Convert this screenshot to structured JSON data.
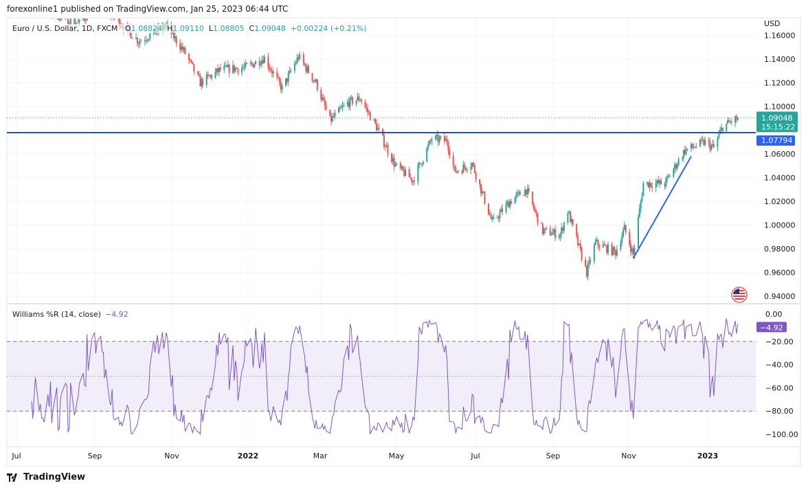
{
  "header": {
    "published": "forexonline1 published on TradingView.com, Jan 25, 2023 06:44 UTC"
  },
  "legend": {
    "symbol": "Euro / U.S. Dollar, 1D, FXCM",
    "o_label": "O",
    "o": "1.08824",
    "h_label": "H",
    "h": "1.09110",
    "l_label": "L",
    "l": "1.08805",
    "c_label": "C",
    "c": "1.09048",
    "change": "+0.00224 (+0.21%)"
  },
  "indicator_legend": {
    "name": "Williams %R (14, close)",
    "value": "−4.92"
  },
  "price_axis": {
    "currency": "USD",
    "ticks": [
      "1.16000",
      "1.14000",
      "1.12000",
      "1.10000",
      "1.06000",
      "1.04000",
      "1.02000",
      "1.00000",
      "0.98000",
      "0.96000",
      "0.94000"
    ],
    "last_price_label": "1.09048",
    "countdown": "15:15:22",
    "line_label": "1.07794"
  },
  "indicator_axis": {
    "ticks": [
      "0.00",
      "−20.00",
      "−40.00",
      "−60.00",
      "−80.00",
      "−100.00"
    ],
    "value_label": "−4.92"
  },
  "time_axis": {
    "labels": [
      "Jul",
      "Sep",
      "Nov",
      "2022",
      "Mar",
      "May",
      "Jul",
      "Sep",
      "Nov",
      "2023"
    ]
  },
  "footer": {
    "logo_text": "TradingView"
  },
  "colors": {
    "up": "#26a69a",
    "down": "#ef5350",
    "line": "#2962ff",
    "horizontal_line": "#1e53a5",
    "williams": "#7e57c2",
    "band": "#ede7f6"
  },
  "icons": {
    "flag": "us-flag-icon",
    "logo": "tradingview-logo"
  },
  "chart_data": [
    {
      "type": "candlestick",
      "title": "Euro / U.S. Dollar, 1D, FXCM",
      "ylabel": "USD",
      "ylim": [
        0.935,
        1.172
      ],
      "xlim": [
        "2021-06-23",
        "2023-02-08"
      ],
      "grid": true,
      "approx_closes": [
        [
          "2021-06-24",
          1.193
        ],
        [
          "2021-08-05",
          1.176
        ],
        [
          "2021-08-20",
          1.17
        ],
        [
          "2021-09-03",
          1.187
        ],
        [
          "2021-09-22",
          1.17
        ],
        [
          "2021-10-06",
          1.155
        ],
        [
          "2021-10-28",
          1.168
        ],
        [
          "2021-11-12",
          1.145
        ],
        [
          "2021-11-24",
          1.12
        ],
        [
          "2021-12-10",
          1.131
        ],
        [
          "2021-12-30",
          1.133
        ],
        [
          "2022-01-14",
          1.141
        ],
        [
          "2022-01-28",
          1.115
        ],
        [
          "2022-02-10",
          1.142
        ],
        [
          "2022-02-24",
          1.12
        ],
        [
          "2022-03-07",
          1.088
        ],
        [
          "2022-03-21",
          1.103
        ],
        [
          "2022-03-31",
          1.107
        ],
        [
          "2022-04-14",
          1.081
        ],
        [
          "2022-04-28",
          1.05
        ],
        [
          "2022-05-12",
          1.038
        ],
        [
          "2022-05-27",
          1.073
        ],
        [
          "2022-06-08",
          1.071
        ],
        [
          "2022-06-14",
          1.045
        ],
        [
          "2022-06-28",
          1.052
        ],
        [
          "2022-07-14",
          1.002
        ],
        [
          "2022-07-28",
          1.02
        ],
        [
          "2022-08-10",
          1.03
        ],
        [
          "2022-08-23",
          0.995
        ],
        [
          "2022-09-06",
          0.992
        ],
        [
          "2022-09-12",
          1.012
        ],
        [
          "2022-09-27",
          0.96
        ],
        [
          "2022-10-04",
          0.985
        ],
        [
          "2022-10-20",
          0.977
        ],
        [
          "2022-10-27",
          0.997
        ],
        [
          "2022-11-03",
          0.975
        ],
        [
          "2022-11-11",
          1.035
        ],
        [
          "2022-11-28",
          1.035
        ],
        [
          "2022-12-14",
          1.063
        ],
        [
          "2022-12-30",
          1.07
        ],
        [
          "2023-01-06",
          1.065
        ],
        [
          "2023-01-13",
          1.083
        ],
        [
          "2023-01-25",
          1.0905
        ]
      ],
      "last": {
        "open": 1.08824,
        "high": 1.0911,
        "low": 1.08805,
        "close": 1.09048
      },
      "horizontal_line": 1.07794,
      "trend_line": [
        [
          "2022-11-03",
          0.972
        ],
        [
          "2022-12-19",
          1.058
        ]
      ]
    },
    {
      "type": "line",
      "title": "Williams %R (14, close)",
      "ylim": [
        -100,
        0
      ],
      "levels": [
        -20,
        -50,
        -80
      ],
      "last_value": -4.92
    }
  ]
}
